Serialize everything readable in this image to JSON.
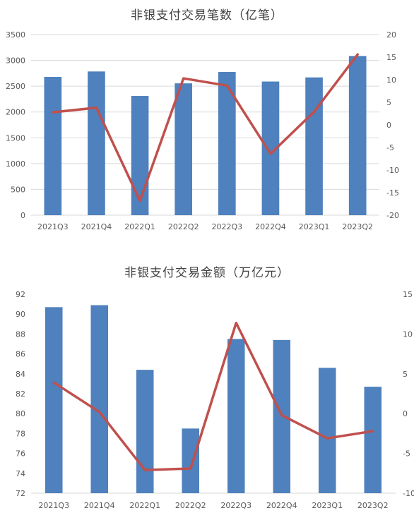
{
  "chart_data": [
    {
      "type": "bar",
      "title": "非银支付交易笔数（亿笔）",
      "categories": [
        "2021Q3",
        "2021Q4",
        "2022Q1",
        "2022Q2",
        "2022Q3",
        "2022Q4",
        "2023Q1",
        "2023Q2"
      ],
      "series": [
        {
          "values": [
            2680,
            2785,
            2310,
            2555,
            2775,
            2590,
            2670,
            3085
          ],
          "color": "#4e81bd",
          "axis": "left",
          "kind": "bar"
        },
        {
          "values": [
            2.8,
            3.8,
            -16.8,
            10.3,
            8.7,
            -6.4,
            2.9,
            15.6
          ],
          "color": "#c0504d",
          "axis": "right",
          "kind": "line"
        }
      ],
      "ylim": [
        0,
        3500
      ],
      "yticks": [
        0,
        500,
        1000,
        1500,
        2000,
        2500,
        3000,
        3500
      ],
      "y2lim": [
        -20,
        20
      ],
      "y2ticks": [
        -20,
        -15,
        -10,
        -5,
        0,
        5,
        10,
        15,
        20
      ],
      "grid": true
    },
    {
      "type": "bar",
      "title": "非银支付交易金额（万亿元）",
      "categories": [
        "2021Q3",
        "2021Q4",
        "2022Q1",
        "2022Q2",
        "2022Q3",
        "2022Q4",
        "2023Q1",
        "2023Q2"
      ],
      "series": [
        {
          "values": [
            90.7,
            90.9,
            84.4,
            78.5,
            87.5,
            87.4,
            84.6,
            82.7
          ],
          "color": "#4e81bd",
          "axis": "left",
          "kind": "bar"
        },
        {
          "values": [
            3.9,
            0.2,
            -7.1,
            -6.9,
            11.4,
            -0.2,
            -3.1,
            -2.2
          ],
          "color": "#c0504d",
          "axis": "right",
          "kind": "line"
        }
      ],
      "ylim": [
        72,
        92
      ],
      "yticks": [
        72,
        74,
        76,
        78,
        80,
        82,
        84,
        86,
        88,
        90,
        92
      ],
      "y2lim": [
        -10,
        15
      ],
      "y2ticks": [
        -10,
        -5,
        0,
        5,
        10,
        15
      ],
      "grid": false
    }
  ]
}
